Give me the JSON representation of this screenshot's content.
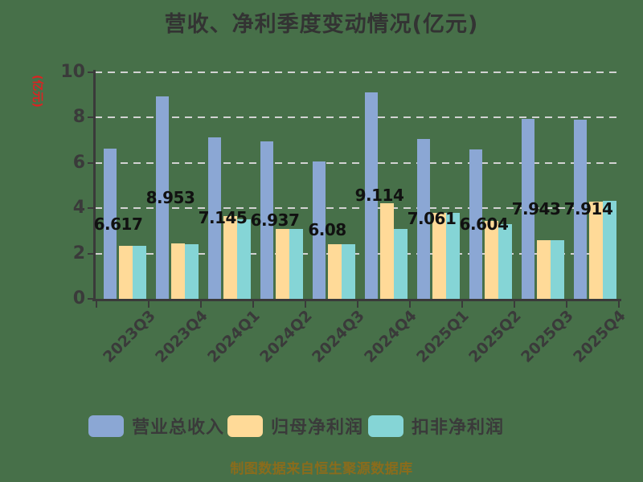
{
  "title": "营收、净利季度变动情况(亿元)",
  "caption": "制图数据来自恒生聚源数据库",
  "y_axis": {
    "label": "(亿元)",
    "ticks": [
      0,
      2,
      4,
      6,
      8,
      10
    ],
    "max": 10
  },
  "legend": {
    "items": [
      {
        "label": "营业总收入",
        "color": "#8BA7D4"
      },
      {
        "label": "归母净利润",
        "color": "#FFDA98"
      },
      {
        "label": "扣非净利润",
        "color": "#85D5D6"
      }
    ]
  },
  "colors": {
    "background": "#477049",
    "gridline": "#d2d2d2",
    "axis": "#3a3a3a",
    "title_text": "#333333",
    "value_label_text": "#111111",
    "y_axis_label_red": "#dd2222",
    "caption_gold": "#8a6c1c"
  },
  "chart_data": {
    "type": "bar",
    "title": "营收、净利季度变动情况(亿元)",
    "xlabel": "",
    "ylabel": "(亿元)",
    "ylim": [
      0,
      10
    ],
    "yticks": [
      0,
      2,
      4,
      6,
      8,
      10
    ],
    "grid": "horizontal-dashed",
    "legend_position": "bottom",
    "categories": [
      "2023Q3",
      "2023Q4",
      "2024Q1",
      "2024Q2",
      "2024Q3",
      "2024Q4",
      "2025Q1",
      "2025Q2",
      "2025Q3",
      "2025Q4"
    ],
    "series": [
      {
        "name": "营业总收入",
        "color": "#8BA7D4",
        "values": [
          6.617,
          8.953,
          7.145,
          6.937,
          6.08,
          9.114,
          7.061,
          6.604,
          7.943,
          7.914
        ],
        "value_labels": [
          "6.617",
          "8.953",
          "7.145",
          "6.937",
          "6.08",
          "9.114",
          "7.061",
          "6.604",
          "7.943",
          "7.914"
        ]
      },
      {
        "name": "归母净利润",
        "color": "#FFDA98",
        "values": [
          2.35,
          2.45,
          3.65,
          3.1,
          2.4,
          4.22,
          3.8,
          3.45,
          2.6,
          4.28
        ]
      },
      {
        "name": "扣非净利润",
        "color": "#85D5D6",
        "values": [
          2.35,
          2.4,
          3.5,
          3.1,
          2.4,
          3.1,
          3.78,
          3.3,
          2.6,
          4.32
        ]
      }
    ],
    "source_note": "制图数据来自恒生聚源数据库"
  }
}
